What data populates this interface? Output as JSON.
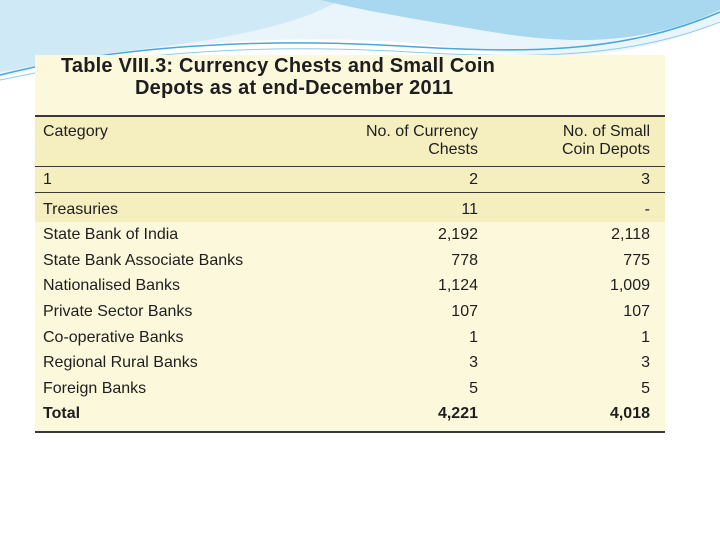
{
  "table": {
    "title_line1": "Table VIII.3: Currency Chests and Small Coin",
    "title_line2": "Depots as at end-December 2011",
    "columns": [
      "Category",
      "No. of Currency\nChests",
      "No. of Small\nCoin Depots"
    ],
    "column_numbers": [
      "1",
      "2",
      "3"
    ],
    "rows": [
      {
        "category": "Treasuries",
        "currency_chests": "11",
        "small_coin_depots": "-"
      },
      {
        "category": "State Bank of India",
        "currency_chests": "2,192",
        "small_coin_depots": "2,118"
      },
      {
        "category": "State Bank Associate Banks",
        "currency_chests": "778",
        "small_coin_depots": "775"
      },
      {
        "category": "Nationalised Banks",
        "currency_chests": "1,124",
        "small_coin_depots": "1,009"
      },
      {
        "category": "Private Sector Banks",
        "currency_chests": "107",
        "small_coin_depots": "107"
      },
      {
        "category": "Co-operative Banks",
        "currency_chests": "1",
        "small_coin_depots": "1"
      },
      {
        "category": "Regional Rural Banks",
        "currency_chests": "3",
        "small_coin_depots": "3"
      },
      {
        "category": "Foreign Banks",
        "currency_chests": "5",
        "small_coin_depots": "5"
      },
      {
        "category": "Total",
        "currency_chests": "4,221",
        "small_coin_depots": "4,018"
      }
    ]
  },
  "colors": {
    "table_background": "#fbf8dc",
    "header_band": "#f5efbf",
    "text": "#1e1e1e",
    "accent_blue": "#5fb6de"
  }
}
